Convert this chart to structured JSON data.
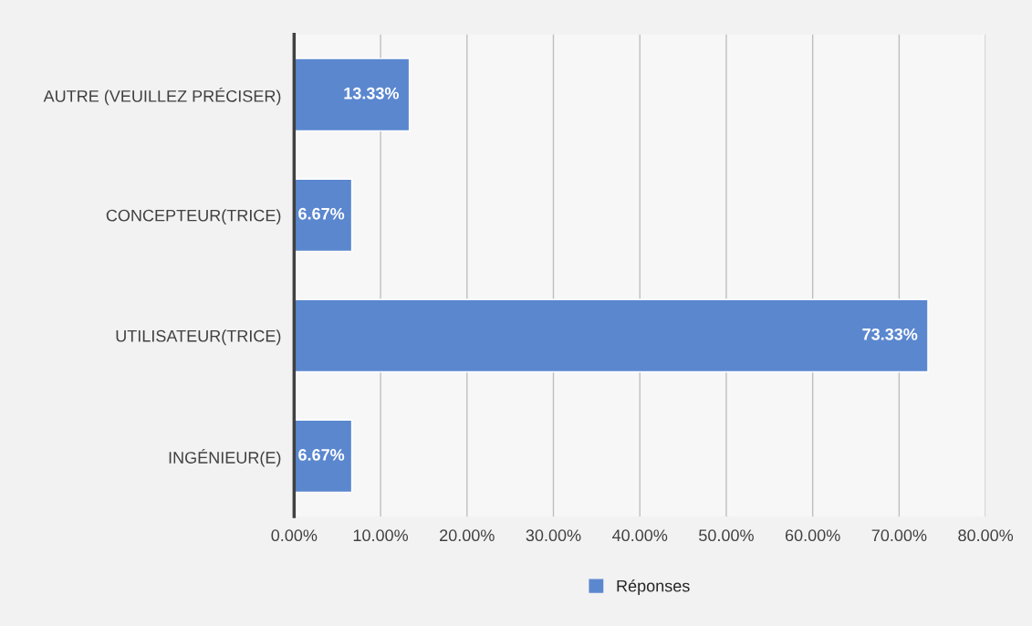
{
  "chart_data": {
    "type": "bar",
    "orientation": "horizontal",
    "categories": [
      "AUTRE (VEUILLEZ PRÉCISER)",
      "CONCEPTEUR(TRICE)",
      "UTILISATEUR(TRICE)",
      "INGÉNIEUR(E)"
    ],
    "series": [
      {
        "name": "Réponses",
        "color": "#5b87cf",
        "values": [
          13.33,
          6.67,
          73.33,
          6.67
        ],
        "value_labels": [
          "13.33%",
          "6.67%",
          "73.33%",
          "6.67%"
        ]
      }
    ],
    "xlim": [
      0,
      80
    ],
    "xticks": [
      {
        "value": 0,
        "label": "0.00%"
      },
      {
        "value": 10,
        "label": "10.00%"
      },
      {
        "value": 20,
        "label": "20.00%"
      },
      {
        "value": 30,
        "label": "30.00%"
      },
      {
        "value": 40,
        "label": "40.00%"
      },
      {
        "value": 50,
        "label": "50.00%"
      },
      {
        "value": 60,
        "label": "60.00%"
      },
      {
        "value": 70,
        "label": "70.00%"
      },
      {
        "value": 80,
        "label": "80.00%"
      }
    ],
    "grid": "x",
    "legend": "bottom"
  }
}
